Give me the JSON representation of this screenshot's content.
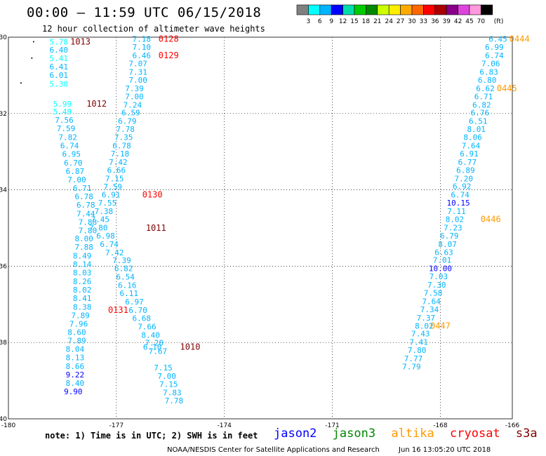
{
  "header": {
    "title": "00:00 – 11:59 UTC 06/15/2018",
    "subtitle": "12 hour collection of altimeter wave heights"
  },
  "colorbar": {
    "labels": [
      "3",
      "6",
      "9",
      "12",
      "15",
      "18",
      "21",
      "24",
      "27",
      "30",
      "33",
      "36",
      "39",
      "42",
      "45",
      "70"
    ],
    "unit": "(ft)",
    "colors": [
      "#808080",
      "#00ffff",
      "#00b4ff",
      "#0000ff",
      "#00ddaa",
      "#00cc00",
      "#008800",
      "#ccff00",
      "#ffee00",
      "#ffaa00",
      "#ff6600",
      "#ff0000",
      "#aa0000",
      "#880088",
      "#dd44dd",
      "#ff99dd",
      "#000000"
    ]
  },
  "chart_data": {
    "type": "scatter",
    "xlim": [
      -180,
      -166
    ],
    "ylim": [
      -40,
      -30
    ],
    "x_ticks": [
      "-180",
      "-177",
      "-174",
      "-171",
      "-168",
      "-166"
    ],
    "y_ticks": [
      "-30",
      "-32",
      "-34",
      "-36",
      "-38",
      "-40"
    ],
    "grid": true,
    "color_scale": [
      [
        3,
        "#9a9a9a"
      ],
      [
        6,
        "#00ffff"
      ],
      [
        9,
        "#00b4ff"
      ],
      [
        12,
        "#0000ff"
      ]
    ],
    "tracks": [
      {
        "name": "A",
        "points": [
          [
            -178.6,
            -30.12,
            5.78
          ],
          [
            -178.6,
            -30.33,
            6.4
          ],
          [
            -178.6,
            -30.55,
            5.41
          ],
          [
            -178.6,
            -30.77,
            6.41
          ],
          [
            -178.6,
            -30.99,
            6.01
          ],
          [
            -178.6,
            -31.22,
            5.3
          ],
          [
            -178.5,
            -31.75,
            5.99
          ],
          [
            -178.5,
            -31.95,
            5.49
          ],
          [
            -178.45,
            -32.17,
            7.56
          ],
          [
            -178.4,
            -32.39,
            7.59
          ],
          [
            -178.35,
            -32.62,
            7.82
          ],
          [
            -178.3,
            -32.84,
            6.74
          ],
          [
            -178.25,
            -33.06,
            6.95
          ],
          [
            -178.2,
            -33.29,
            6.7
          ],
          [
            -178.15,
            -33.51,
            6.87
          ],
          [
            -178.1,
            -33.73,
            7.0
          ],
          [
            -177.95,
            -33.95,
            6.71
          ],
          [
            -177.9,
            -34.17,
            6.78
          ],
          [
            -177.85,
            -34.39,
            6.78
          ],
          [
            -177.85,
            -34.62,
            7.44
          ],
          [
            -177.8,
            -34.84,
            7.88
          ],
          [
            -177.8,
            -35.06,
            7.8
          ],
          [
            -177.9,
            -35.28,
            8.0
          ],
          [
            -177.9,
            -35.5,
            7.88
          ],
          [
            -177.95,
            -35.73,
            8.49
          ],
          [
            -177.95,
            -35.95,
            8.14
          ],
          [
            -177.95,
            -36.17,
            8.03
          ],
          [
            -177.95,
            -36.4,
            8.26
          ],
          [
            -177.95,
            -36.62,
            8.02
          ],
          [
            -177.95,
            -36.84,
            8.41
          ],
          [
            -177.95,
            -37.07,
            8.38
          ],
          [
            -178.0,
            -37.29,
            7.89
          ],
          [
            -178.05,
            -37.51,
            7.96
          ],
          [
            -178.1,
            -37.73,
            8.6
          ],
          [
            -178.1,
            -37.95,
            7.89
          ],
          [
            -178.15,
            -38.17,
            8.04
          ],
          [
            -178.15,
            -38.39,
            8.13
          ],
          [
            -178.15,
            -38.62,
            8.66
          ],
          [
            -178.15,
            -38.84,
            9.22
          ],
          [
            -178.15,
            -39.06,
            8.4
          ],
          [
            -178.2,
            -39.28,
            9.9
          ]
        ]
      },
      {
        "name": "B",
        "points": [
          [
            -176.3,
            -30.05,
            7.18
          ],
          [
            -176.3,
            -30.26,
            7.1
          ],
          [
            -176.3,
            -30.48,
            6.46
          ],
          [
            -176.4,
            -30.69,
            7.07
          ],
          [
            -176.4,
            -30.91,
            7.31
          ],
          [
            -176.4,
            -31.12,
            7.0
          ],
          [
            -176.5,
            -31.34,
            7.39
          ],
          [
            -176.5,
            -31.55,
            7.0
          ],
          [
            -176.55,
            -31.77,
            7.24
          ],
          [
            -176.6,
            -31.98,
            6.59
          ],
          [
            -176.7,
            -32.2,
            6.79
          ],
          [
            -176.75,
            -32.41,
            7.78
          ],
          [
            -176.8,
            -32.62,
            7.35
          ],
          [
            -176.85,
            -32.84,
            6.78
          ],
          [
            -176.9,
            -33.05,
            7.18
          ],
          [
            -176.95,
            -33.27,
            7.42
          ],
          [
            -177.0,
            -33.48,
            6.66
          ],
          [
            -177.05,
            -33.7,
            7.15
          ],
          [
            -177.1,
            -33.92,
            7.59
          ],
          [
            -177.15,
            -34.13,
            6.91
          ],
          [
            -177.25,
            -34.34,
            7.55
          ],
          [
            -177.35,
            -34.56,
            7.38
          ],
          [
            -177.45,
            -34.77,
            7.45
          ],
          [
            -177.5,
            -34.99,
            7.8
          ],
          [
            -177.3,
            -35.2,
            6.98
          ],
          [
            -177.2,
            -35.42,
            6.74
          ],
          [
            -177.05,
            -35.64,
            7.42
          ],
          [
            -176.85,
            -35.85,
            7.39
          ],
          [
            -176.8,
            -36.06,
            6.82
          ],
          [
            -176.75,
            -36.28,
            6.54
          ],
          [
            -176.7,
            -36.5,
            6.16
          ],
          [
            -176.65,
            -36.71,
            6.11
          ],
          [
            -176.5,
            -36.93,
            6.97
          ],
          [
            -176.4,
            -37.15,
            6.7
          ],
          [
            -176.3,
            -37.36,
            6.68
          ],
          [
            -176.15,
            -37.58,
            7.66
          ],
          [
            -176.05,
            -37.8,
            8.4
          ],
          [
            -175.95,
            -38.01,
            7.2
          ],
          [
            -176.0,
            -38.12,
            6.1
          ],
          [
            -175.85,
            -38.23,
            7.67
          ],
          [
            -175.7,
            -38.66,
            7.15
          ],
          [
            -175.6,
            -38.88,
            7.0
          ],
          [
            -175.55,
            -39.09,
            7.15
          ],
          [
            -175.45,
            -39.31,
            7.83
          ],
          [
            -175.4,
            -39.52,
            7.78
          ]
        ]
      },
      {
        "name": "C",
        "points": [
          [
            -166.4,
            -30.05,
            6.45
          ],
          [
            -166.5,
            -30.26,
            6.99
          ],
          [
            -166.5,
            -30.48,
            6.74
          ],
          [
            -166.6,
            -30.69,
            7.06
          ],
          [
            -166.65,
            -30.91,
            6.83
          ],
          [
            -166.7,
            -31.12,
            6.8
          ],
          [
            -166.75,
            -31.34,
            6.62
          ],
          [
            -166.8,
            -31.55,
            6.71
          ],
          [
            -166.85,
            -31.77,
            6.82
          ],
          [
            -166.9,
            -31.98,
            6.76
          ],
          [
            -166.95,
            -32.2,
            6.51
          ],
          [
            -167.0,
            -32.41,
            8.01
          ],
          [
            -167.1,
            -32.62,
            8.06
          ],
          [
            -167.15,
            -32.84,
            7.64
          ],
          [
            -167.2,
            -33.05,
            6.91
          ],
          [
            -167.25,
            -33.27,
            6.77
          ],
          [
            -167.3,
            -33.48,
            6.89
          ],
          [
            -167.35,
            -33.7,
            7.2
          ],
          [
            -167.4,
            -33.91,
            6.92
          ],
          [
            -167.45,
            -34.13,
            6.74
          ],
          [
            -167.5,
            -34.34,
            10.15
          ],
          [
            -167.55,
            -34.56,
            7.11
          ],
          [
            -167.6,
            -34.77,
            8.02
          ],
          [
            -167.65,
            -34.99,
            7.23
          ],
          [
            -167.75,
            -35.2,
            6.79
          ],
          [
            -167.8,
            -35.42,
            8.07
          ],
          [
            -167.9,
            -35.63,
            6.63
          ],
          [
            -167.95,
            -35.84,
            7.01
          ],
          [
            -168.0,
            -36.06,
            10.0
          ],
          [
            -168.05,
            -36.27,
            7.03
          ],
          [
            -168.1,
            -36.49,
            7.3
          ],
          [
            -168.2,
            -36.7,
            7.58
          ],
          [
            -168.25,
            -36.92,
            7.64
          ],
          [
            -168.3,
            -37.13,
            7.34
          ],
          [
            -168.4,
            -37.35,
            7.37
          ],
          [
            -168.45,
            -37.56,
            8.02
          ],
          [
            -168.55,
            -37.77,
            7.43
          ],
          [
            -168.6,
            -37.99,
            7.41
          ],
          [
            -168.65,
            -38.2,
            7.8
          ],
          [
            -168.75,
            -38.42,
            7.77
          ],
          [
            -168.8,
            -38.63,
            7.79
          ]
        ]
      }
    ],
    "markers": [
      {
        "label": "1013",
        "lon": -178.0,
        "lat": -30.12,
        "color": "#800000"
      },
      {
        "label": "1012",
        "lon": -177.55,
        "lat": -31.75,
        "color": "#800000"
      },
      {
        "label": "1011",
        "lon": -175.9,
        "lat": -35.0,
        "color": "#800000"
      },
      {
        "label": "1010",
        "lon": -174.95,
        "lat": -38.12,
        "color": "#800000"
      },
      {
        "label": "0128",
        "lon": -175.55,
        "lat": -30.05,
        "color": "#ff0000"
      },
      {
        "label": "0129",
        "lon": -175.55,
        "lat": -30.48,
        "color": "#ff0000"
      },
      {
        "label": "0130",
        "lon": -176.0,
        "lat": -34.13,
        "color": "#ff0000"
      },
      {
        "label": "0131",
        "lon": -176.95,
        "lat": -37.15,
        "color": "#ff0000"
      },
      {
        "label": "0444",
        "lon": -165.8,
        "lat": -30.05,
        "color": "#ff9900"
      },
      {
        "label": "0445",
        "lon": -166.15,
        "lat": -31.34,
        "color": "#ff9900"
      },
      {
        "label": "0446",
        "lon": -166.6,
        "lat": -34.77,
        "color": "#ff9900"
      },
      {
        "label": "0447",
        "lon": -168.0,
        "lat": -37.56,
        "color": "#ff9900"
      }
    ],
    "dots": [
      [
        -179.3,
        -30.12
      ],
      [
        -179.35,
        -30.55
      ],
      [
        -179.65,
        -31.2
      ]
    ]
  },
  "footer": {
    "note": "note: 1) Time is in UTC; 2) SWH is in feet",
    "legend": [
      {
        "name": "jason2",
        "color": "#0000ff"
      },
      {
        "name": "jason3",
        "color": "#008800"
      },
      {
        "name": "altika",
        "color": "#ff9900"
      },
      {
        "name": "cryosat",
        "color": "#ff0000"
      },
      {
        "name": "s3a",
        "color": "#800000"
      }
    ],
    "credit_left": "NOAA/NESDIS Center for Satellite Applications and Research",
    "credit_right": "Jun 16 13:05:20 UTC 2018"
  }
}
